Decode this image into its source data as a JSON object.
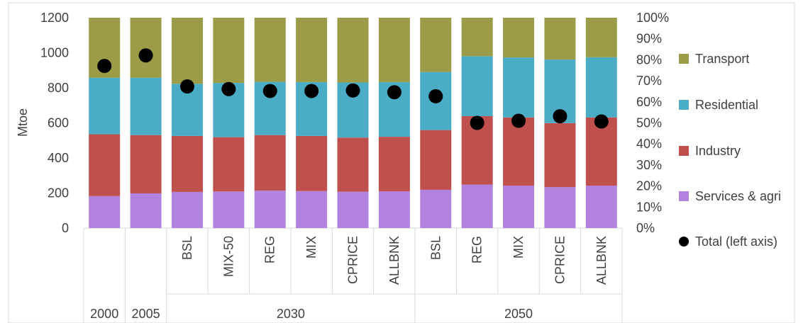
{
  "chart_data": {
    "type": "bar",
    "stacked": "percent",
    "ylabel": "Mtoe",
    "y_left_ticks": [
      "0",
      "200",
      "400",
      "600",
      "800",
      "1000",
      "1200"
    ],
    "y_right_ticks": [
      "0%",
      "10%",
      "20%",
      "30%",
      "40%",
      "50%",
      "60%",
      "70%",
      "80%",
      "90%",
      "100%"
    ],
    "ylim_left": [
      0,
      1200
    ],
    "ylim_right": [
      0,
      100
    ],
    "categories": [
      "",
      "",
      "BSL",
      "MIX-50",
      "REG",
      "MIX",
      "CPRICE",
      "ALLBNK",
      "BSL",
      "REG",
      "MIX",
      "CPRICE",
      "ALLBNK"
    ],
    "groups": [
      {
        "label": "2000",
        "count": 1
      },
      {
        "label": "2005",
        "count": 1
      },
      {
        "label": "2030",
        "count": 6
      },
      {
        "label": "2050",
        "count": 5
      }
    ],
    "series": [
      {
        "name": "Services & agri",
        "color": "#b283de",
        "values": [
          15.2,
          16.5,
          17.2,
          17.4,
          17.8,
          17.6,
          17.3,
          17.5,
          18.2,
          20.7,
          20.2,
          19.5,
          20.2
        ]
      },
      {
        "name": "Industry",
        "color": "#c0504d",
        "values": [
          29.4,
          27.7,
          26.6,
          25.8,
          26.4,
          26.2,
          25.7,
          25.9,
          28.4,
          32.5,
          32.4,
          30.4,
          32.4
        ]
      },
      {
        "name": "Residential",
        "color": "#4bacc6",
        "values": [
          26.9,
          27.3,
          24.8,
          25.8,
          25.3,
          25.6,
          26.2,
          26.0,
          27.6,
          28.5,
          28.5,
          30.2,
          28.6
        ]
      },
      {
        "name": "Transport",
        "color": "#9b9b48",
        "values": [
          28.5,
          28.5,
          31.4,
          31.0,
          30.5,
          30.6,
          30.8,
          30.6,
          25.8,
          18.3,
          18.9,
          19.9,
          18.8
        ]
      }
    ],
    "total": {
      "name": "Total (left axis)",
      "color": "#000000",
      "values": [
        925,
        985,
        808,
        793,
        782,
        782,
        785,
        775,
        752,
        600,
        612,
        638,
        608
      ]
    },
    "legend_position": "right",
    "grid": false
  }
}
